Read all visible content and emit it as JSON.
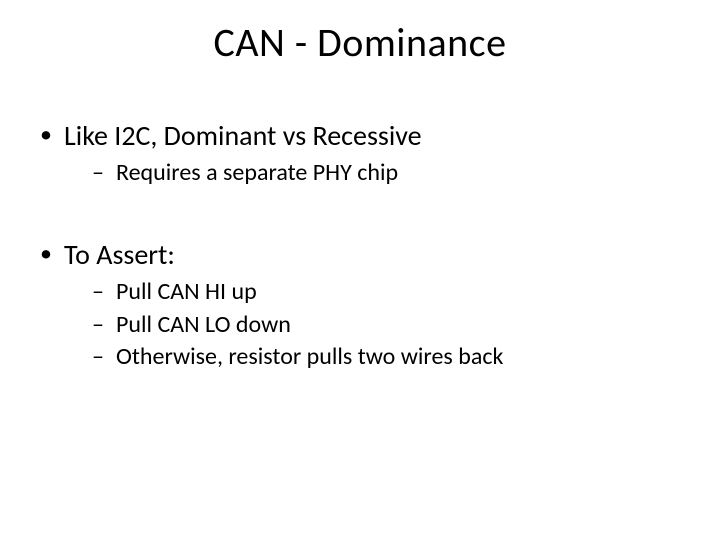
{
  "slide": {
    "title": "CAN - Dominance",
    "bullets": [
      {
        "text": "Like I2C, Dominant vs Recessive",
        "children": [
          {
            "text": "Requires a separate PHY chip"
          }
        ]
      },
      {
        "text": "To Assert:",
        "children": [
          {
            "text": "Pull CAN HI up"
          },
          {
            "text": "Pull CAN LO down"
          },
          {
            "text": "Otherwise, resistor pulls two wires back"
          }
        ]
      }
    ]
  },
  "style": {
    "background_color": "#ffffff",
    "text_color": "#000000",
    "title_fontsize": 40,
    "level1_fontsize": 28,
    "level2_fontsize": 24,
    "font_family": "Calibri",
    "level1_marker": "•",
    "level2_marker": "–"
  }
}
